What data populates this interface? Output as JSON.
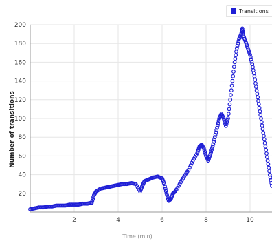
{
  "chart_data": {
    "type": "scatter",
    "title": "",
    "xlabel": "Time (min)",
    "ylabel": "Number of transitions",
    "xlim": [
      0,
      11
    ],
    "ylim": [
      0,
      200
    ],
    "x_ticks": [
      2,
      4,
      6,
      8,
      10
    ],
    "y_ticks": [
      20,
      40,
      60,
      80,
      100,
      120,
      140,
      160,
      180,
      200
    ],
    "grid": true,
    "legend_position": "top-right",
    "series": [
      {
        "name": "Transitions",
        "color": "#1f1fd6",
        "points": [
          [
            0.0,
            3
          ],
          [
            0.2,
            4
          ],
          [
            0.4,
            5
          ],
          [
            0.6,
            5
          ],
          [
            0.8,
            6
          ],
          [
            1.0,
            6
          ],
          [
            1.2,
            7
          ],
          [
            1.4,
            7
          ],
          [
            1.6,
            7
          ],
          [
            1.8,
            8
          ],
          [
            2.0,
            8
          ],
          [
            2.2,
            8
          ],
          [
            2.4,
            9
          ],
          [
            2.6,
            9
          ],
          [
            2.8,
            10
          ],
          [
            2.9,
            18
          ],
          [
            3.0,
            22
          ],
          [
            3.2,
            25
          ],
          [
            3.4,
            26
          ],
          [
            3.6,
            27
          ],
          [
            3.8,
            28
          ],
          [
            4.0,
            29
          ],
          [
            4.2,
            30
          ],
          [
            4.4,
            30
          ],
          [
            4.6,
            31
          ],
          [
            4.8,
            30
          ],
          [
            5.0,
            22
          ],
          [
            5.1,
            28
          ],
          [
            5.2,
            33
          ],
          [
            5.4,
            35
          ],
          [
            5.6,
            37
          ],
          [
            5.8,
            38
          ],
          [
            6.0,
            36
          ],
          [
            6.1,
            30
          ],
          [
            6.2,
            20
          ],
          [
            6.3,
            12
          ],
          [
            6.4,
            14
          ],
          [
            6.5,
            20
          ],
          [
            6.6,
            22
          ],
          [
            6.8,
            30
          ],
          [
            7.0,
            38
          ],
          [
            7.2,
            45
          ],
          [
            7.4,
            55
          ],
          [
            7.6,
            63
          ],
          [
            7.7,
            70
          ],
          [
            7.8,
            72
          ],
          [
            7.9,
            68
          ],
          [
            8.0,
            60
          ],
          [
            8.1,
            55
          ],
          [
            8.2,
            62
          ],
          [
            8.3,
            70
          ],
          [
            8.4,
            80
          ],
          [
            8.5,
            90
          ],
          [
            8.6,
            100
          ],
          [
            8.7,
            105
          ],
          [
            8.8,
            100
          ],
          [
            8.9,
            92
          ],
          [
            9.0,
            100
          ],
          [
            9.1,
            120
          ],
          [
            9.2,
            140
          ],
          [
            9.3,
            160
          ],
          [
            9.4,
            175
          ],
          [
            9.5,
            185
          ],
          [
            9.6,
            190
          ],
          [
            9.65,
            196
          ],
          [
            9.7,
            188
          ],
          [
            9.8,
            182
          ],
          [
            9.9,
            175
          ],
          [
            10.0,
            168
          ],
          [
            10.1,
            158
          ],
          [
            10.2,
            145
          ],
          [
            10.3,
            130
          ],
          [
            10.4,
            115
          ],
          [
            10.5,
            100
          ],
          [
            10.6,
            85
          ],
          [
            10.7,
            70
          ],
          [
            10.8,
            55
          ],
          [
            10.9,
            40
          ],
          [
            11.0,
            28
          ]
        ]
      }
    ]
  }
}
